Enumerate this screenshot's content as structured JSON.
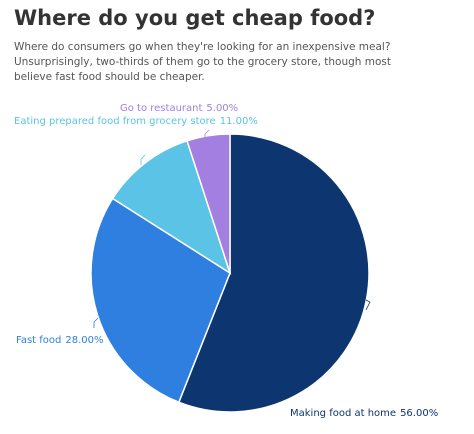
{
  "chart_data": {
    "type": "pie",
    "title": "Where do you get cheap food?",
    "subtitle": "Where do consumers go when they're looking for an inexpensive meal? Unsurprisingly, two-thirds of them go to the grocery store, though most believe fast food should be cheaper.",
    "categories": [
      "Making food at home",
      "Fast food",
      "Eating prepared food from grocery store",
      "Go to restaurant"
    ],
    "values": [
      56,
      28,
      11,
      5
    ],
    "value_labels": [
      "56.00%",
      "28.00%",
      "11.00%",
      "5.00%"
    ],
    "colors": [
      "#0d3570",
      "#2e7fe0",
      "#5bc3e6",
      "#a27fe0"
    ]
  }
}
